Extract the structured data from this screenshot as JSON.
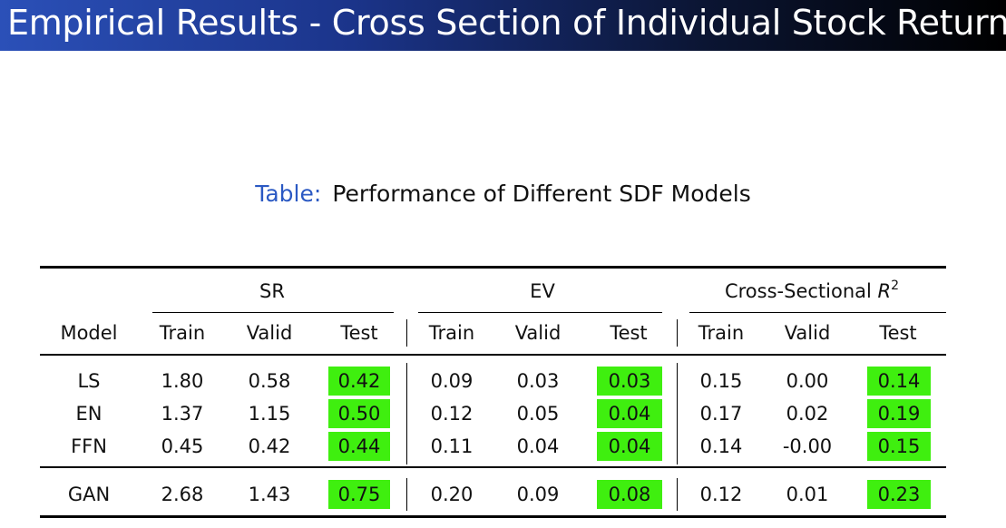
{
  "slide": {
    "title": "Empirical Results - Cross Section of Individual Stock Returns"
  },
  "table": {
    "caption_label": "Table:",
    "caption_text": "Performance of Different SDF Models",
    "groups": {
      "sr": "SR",
      "ev": "EV",
      "r2_prefix": "Cross-Sectional ",
      "r2_var": "R",
      "r2_exp": "2"
    },
    "columns": [
      "Model",
      "Train",
      "Valid",
      "Test",
      "Train",
      "Valid",
      "Test",
      "Train",
      "Valid",
      "Test"
    ],
    "rows": [
      [
        "LS",
        "1.80",
        "0.58",
        "0.42",
        "0.09",
        "0.03",
        "0.03",
        "0.15",
        "0.00",
        "0.14"
      ],
      [
        "EN",
        "1.37",
        "1.15",
        "0.50",
        "0.12",
        "0.05",
        "0.04",
        "0.17",
        "0.02",
        "0.19"
      ],
      [
        "FFN",
        "0.45",
        "0.42",
        "0.44",
        "0.11",
        "0.04",
        "0.04",
        "0.14",
        "-0.00",
        "0.15"
      ],
      [
        "GAN",
        "2.68",
        "1.43",
        "0.75",
        "0.20",
        "0.09",
        "0.08",
        "0.12",
        "0.01",
        "0.23"
      ]
    ],
    "highlight_color": "#3fef0f"
  }
}
